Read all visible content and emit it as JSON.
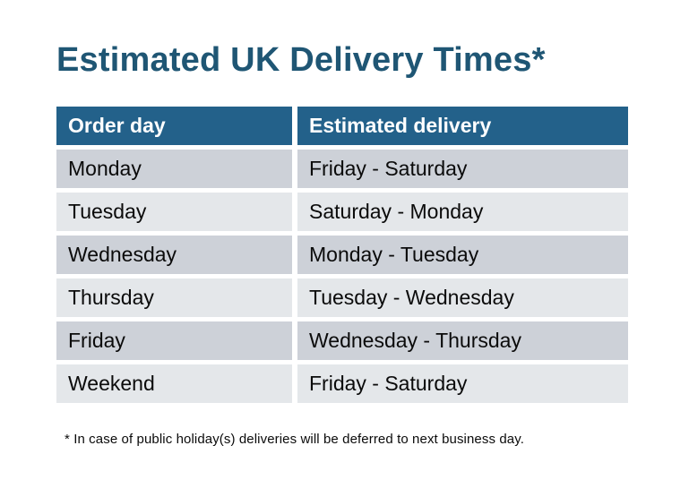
{
  "page": {
    "title": "Estimated UK Delivery Times*",
    "footnote": "* In case of public holiday(s) deliveries will be deferred to next business day."
  },
  "table": {
    "headers": [
      "Order day",
      "Estimated delivery"
    ],
    "rows": [
      {
        "order_day": "Monday",
        "delivery": "Friday - Saturday"
      },
      {
        "order_day": "Tuesday",
        "delivery": "Saturday - Monday"
      },
      {
        "order_day": "Wednesday",
        "delivery": "Monday - Tuesday"
      },
      {
        "order_day": "Thursday",
        "delivery": "Tuesday - Wednesday"
      },
      {
        "order_day": "Friday",
        "delivery": "Wednesday - Thursday"
      },
      {
        "order_day": "Weekend",
        "delivery": "Friday - Saturday"
      }
    ]
  },
  "colors": {
    "title": "#1F5674",
    "header_bg": "#23618A",
    "header_text": "#FFFFFF",
    "row_odd_bg": "#CDD1D8",
    "row_even_bg": "#E4E7EA",
    "body_text": "#0B0B0B",
    "page_bg": "#FFFFFF"
  }
}
